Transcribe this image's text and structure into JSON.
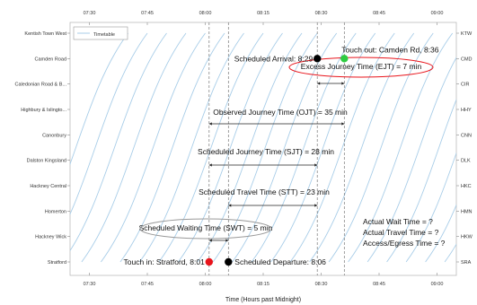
{
  "chart_data": {
    "type": "line",
    "title": "",
    "xlabel": "Time (Hours past Midnight)",
    "ylabel": "",
    "x_unit": "minutes past midnight",
    "xlim": [
      445,
      545
    ],
    "x_ticks": [
      450,
      465,
      480,
      495,
      510,
      525,
      540
    ],
    "x_tick_labels": [
      "07:30",
      "07:45",
      "08:00",
      "08:15",
      "08:30",
      "08:45",
      "09:00"
    ],
    "stations_left": [
      "Kentish Town West",
      "Camden Road",
      "Caledonian Road & B...",
      "Highbury & Islingto...",
      "Canonbury",
      "Dalston Kingsland",
      "Hackney Central",
      "Homerton",
      "Hackney Wick",
      "Stratford"
    ],
    "stations_right": [
      "KTW",
      "CMD",
      "CIR",
      "HHY",
      "CNN",
      "DLK",
      "HKC",
      "HMN",
      "HKW",
      "SRA"
    ],
    "legend": {
      "label": "Timetable",
      "placement": "top-left"
    },
    "timetable_series": {
      "name": "Timetable",
      "color": "#a8cde8",
      "trip_duration_min": 27,
      "departures_from_stratford": [
        433,
        438,
        443,
        448,
        453,
        458,
        463,
        468,
        473,
        478,
        482,
        487,
        492,
        497,
        502,
        507,
        512,
        517,
        522,
        527,
        532,
        537,
        542
      ]
    },
    "reference_lines": [
      481,
      486,
      509,
      516
    ],
    "points": [
      {
        "label": "Touch in: Stratford, 8:01",
        "x": 481,
        "station": "Stratford",
        "color": "#e8141b"
      },
      {
        "label": "Scheduled Departure: 8:06",
        "x": 486,
        "station": "Stratford",
        "color": "#000000"
      },
      {
        "label": "Scheduled Arrival: 8:29",
        "x": 509,
        "station": "Camden Road",
        "color": "#000000"
      },
      {
        "label": "Touch out: Camden Rd, 8:36",
        "x": 516,
        "station": "Camden Road",
        "color": "#2ecc40"
      }
    ],
    "intervals": [
      {
        "label": "Excess Journey Time (EJT) = 7 min",
        "x0": 509,
        "x1": 516,
        "oval": true
      },
      {
        "label": "Observed Journey Time (OJT) = 35 min",
        "x0": 481,
        "x1": 516,
        "oval": false
      },
      {
        "label": "Scheduled Journey Time (SJT) = 28 min",
        "x0": 481,
        "x1": 509,
        "oval": false
      },
      {
        "label": "Scheduled Travel Time (STT) = 23 min",
        "x0": 486,
        "x1": 509,
        "oval": false
      },
      {
        "label": "Scheduled Waiting Time (SWT) = 5 min",
        "x0": 481,
        "x1": 486,
        "oval": true
      }
    ],
    "notes": [
      "Actual Wait Time = ?",
      "Actual Travel Time = ?",
      "Access/Egress Time = ?"
    ],
    "colors": {
      "timetable": "#a8cde8",
      "oval": "#e8141b",
      "oval_grey": "#999999",
      "guide": "#777777"
    }
  }
}
